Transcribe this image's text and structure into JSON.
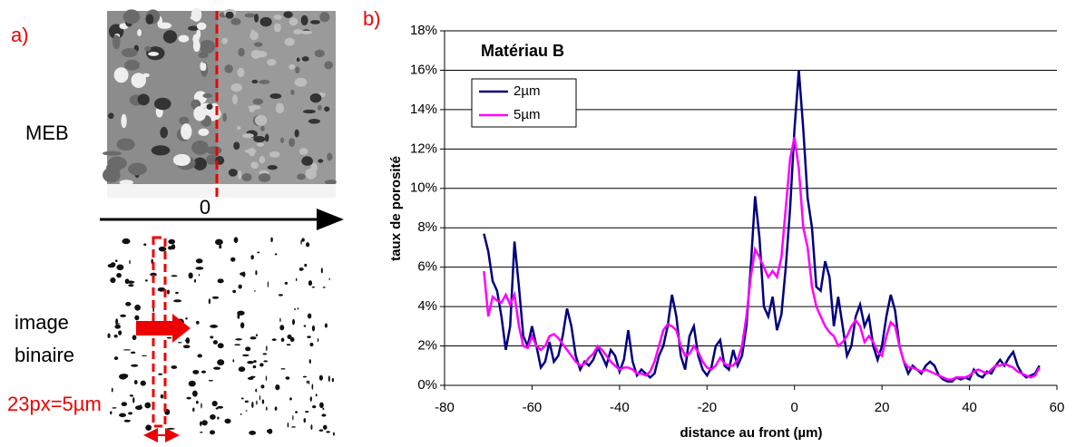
{
  "panel_a": {
    "label": "a)",
    "sem_label": "MEB",
    "origin_label": "0",
    "binary_label_1": "image",
    "binary_label_2": "binaire",
    "scale_label": "23px=5µm"
  },
  "chart_data": {
    "type": "line",
    "panel_label": "b)",
    "title": "Matériau B",
    "x_label": "distance au front (µm)",
    "y_label": "taux de porosité",
    "x": [
      -71,
      -70,
      -69,
      -68,
      -67,
      -66,
      -65,
      -64,
      -63,
      -62,
      -61,
      -60,
      -59,
      -58,
      -57,
      -56,
      -55,
      -54,
      -53,
      -52,
      -51,
      -50,
      -49,
      -48,
      -47,
      -46,
      -45,
      -44,
      -43,
      -42,
      -41,
      -40,
      -39,
      -38,
      -37,
      -36,
      -35,
      -34,
      -33,
      -32,
      -31,
      -30,
      -29,
      -28,
      -27,
      -26,
      -25,
      -24,
      -23,
      -22,
      -21,
      -20,
      -19,
      -18,
      -17,
      -16,
      -15,
      -14,
      -13,
      -12,
      -11,
      -10,
      -9,
      -8,
      -7,
      -6,
      -5,
      -4,
      -3,
      -2,
      -1,
      0,
      1,
      2,
      3,
      4,
      5,
      6,
      7,
      8,
      9,
      10,
      11,
      12,
      13,
      14,
      15,
      16,
      17,
      18,
      19,
      20,
      21,
      22,
      23,
      24,
      25,
      26,
      27,
      28,
      29,
      30,
      31,
      32,
      33,
      34,
      35,
      36,
      37,
      38,
      39,
      40,
      41,
      42,
      43,
      44,
      45,
      46,
      47,
      48,
      49,
      50,
      51,
      52,
      53,
      54,
      55,
      56
    ],
    "series": [
      {
        "name": "2µm",
        "color": "#000080",
        "values": [
          7.7,
          6.8,
          5.3,
          4.8,
          3.5,
          1.8,
          3.0,
          7.3,
          5.0,
          2.5,
          2.0,
          3.0,
          2.0,
          0.9,
          1.2,
          2.2,
          1.2,
          1.5,
          2.5,
          3.9,
          3.0,
          1.5,
          0.8,
          1.2,
          1.0,
          1.3,
          1.9,
          1.5,
          1.0,
          1.8,
          1.5,
          0.7,
          1.3,
          2.8,
          1.2,
          0.5,
          0.8,
          0.6,
          0.4,
          0.6,
          1.5,
          2.0,
          3.0,
          4.6,
          3.5,
          1.5,
          0.8,
          2.5,
          3.0,
          1.5,
          0.8,
          0.5,
          0.9,
          2.0,
          2.3,
          1.0,
          0.8,
          1.8,
          1.0,
          1.5,
          3.0,
          6.0,
          9.6,
          7.5,
          4.0,
          3.5,
          4.5,
          2.8,
          3.6,
          6.0,
          9.0,
          13.0,
          16.0,
          13.0,
          9.5,
          8.0,
          5.0,
          4.8,
          6.3,
          5.5,
          3.0,
          4.5,
          3.0,
          1.5,
          2.0,
          3.5,
          4.1,
          3.0,
          3.5,
          2.0,
          1.3,
          2.0,
          3.5,
          4.6,
          3.8,
          2.0,
          1.2,
          0.6,
          1.0,
          0.8,
          0.6,
          1.0,
          1.2,
          1.0,
          0.5,
          0.3,
          0.2,
          0.2,
          0.4,
          0.3,
          0.4,
          0.3,
          0.8,
          0.5,
          0.4,
          0.7,
          0.6,
          1.0,
          1.3,
          1.0,
          1.4,
          1.7,
          1.0,
          0.6,
          0.4,
          0.5,
          0.6,
          1.0
        ]
      },
      {
        "name": "5µm",
        "color": "#ff00ff",
        "values": [
          5.8,
          3.5,
          4.5,
          4.3,
          4.2,
          4.6,
          4.1,
          4.6,
          3.0,
          2.0,
          1.9,
          2.5,
          2.0,
          1.8,
          2.0,
          2.5,
          2.6,
          2.4,
          2.1,
          1.8,
          1.5,
          1.2,
          1.0,
          1.1,
          1.4,
          1.6,
          2.0,
          1.8,
          1.5,
          1.2,
          1.0,
          0.8,
          0.9,
          0.9,
          0.8,
          0.6,
          0.6,
          0.5,
          0.7,
          1.2,
          2.0,
          2.8,
          3.1,
          3.0,
          2.8,
          2.0,
          1.5,
          1.6,
          2.0,
          1.7,
          1.2,
          0.9,
          0.8,
          1.0,
          1.4,
          1.1,
          1.0,
          1.0,
          1.3,
          2.0,
          3.5,
          5.5,
          6.9,
          6.5,
          6.0,
          5.5,
          5.8,
          5.5,
          6.5,
          9.0,
          11.5,
          12.6,
          11.0,
          8.0,
          7.0,
          5.0,
          4.0,
          3.5,
          3.0,
          2.7,
          2.5,
          2.0,
          2.2,
          2.5,
          3.0,
          3.3,
          3.0,
          2.2,
          2.5,
          2.2,
          1.7,
          1.5,
          2.5,
          3.2,
          3.0,
          2.0,
          1.2,
          0.9,
          0.9,
          0.8,
          0.7,
          0.8,
          0.7,
          0.6,
          0.5,
          0.4,
          0.3,
          0.3,
          0.4,
          0.4,
          0.4,
          0.5,
          0.7,
          0.8,
          0.7,
          0.6,
          0.8,
          1.0,
          1.0,
          1.1,
          1.0,
          0.9,
          0.7,
          0.6,
          0.5,
          0.4,
          0.5,
          0.9
        ]
      }
    ],
    "xlim": [
      -80,
      60
    ],
    "xticks": [
      -80,
      -60,
      -40,
      -20,
      0,
      20,
      40,
      60
    ],
    "ylim": [
      0,
      18
    ],
    "yticks": [
      {
        "value": 0,
        "label": "0%"
      },
      {
        "value": 2,
        "label": "2%"
      },
      {
        "value": 4,
        "label": "4%"
      },
      {
        "value": 6,
        "label": "6%"
      },
      {
        "value": 8,
        "label": "8%"
      },
      {
        "value": 10,
        "label": "10%"
      },
      {
        "value": 12,
        "label": "12%"
      },
      {
        "value": 14,
        "label": "14%"
      },
      {
        "value": 16,
        "label": "16%"
      },
      {
        "value": 18,
        "label": "18%"
      }
    ],
    "grid": true
  }
}
